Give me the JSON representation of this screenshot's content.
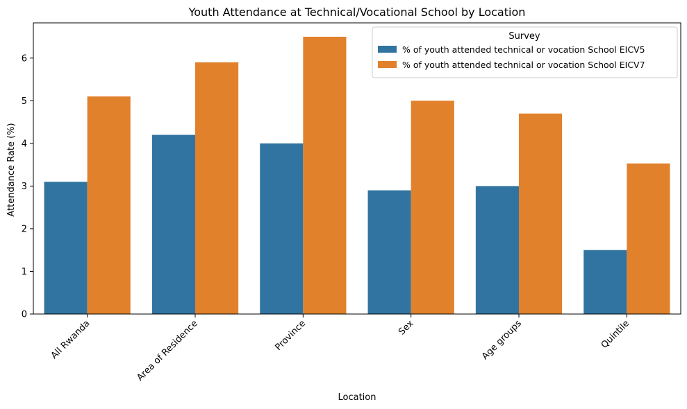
{
  "chart_data": {
    "type": "bar",
    "title": "Youth Attendance at Technical/Vocational School by Location",
    "xlabel": "Location",
    "ylabel": "Attendance Rate (%)",
    "categories": [
      "All Rwanda",
      "Area of Residence",
      "Province",
      "Sex",
      "Age groups",
      "Quintile"
    ],
    "series": [
      {
        "name": "% of youth attended technical or vocation School EICV5",
        "color": "#3274a1",
        "values": [
          3.1,
          4.2,
          4.0,
          2.9,
          3.0,
          1.5
        ]
      },
      {
        "name": "% of youth attended technical or vocation School EICV7",
        "color": "#e1812c",
        "values": [
          5.1,
          5.9,
          6.5,
          5.0,
          4.7,
          3.53
        ]
      }
    ],
    "ylim": [
      0,
      6.825
    ],
    "yticks": [
      0,
      1,
      2,
      3,
      4,
      5,
      6
    ],
    "legend": {
      "title": "Survey",
      "placement": "top-right"
    },
    "grid": false
  }
}
